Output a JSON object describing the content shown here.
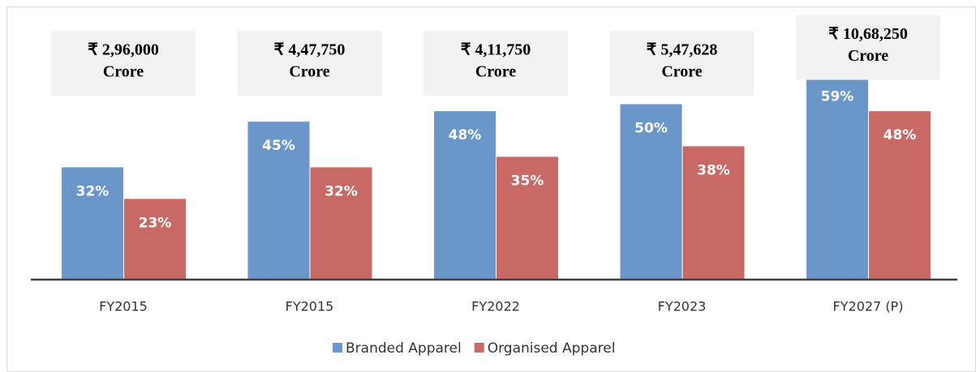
{
  "chart_data": {
    "type": "bar",
    "categories": [
      "FY2015",
      "FY2015",
      "FY2022",
      "FY2023",
      "FY2027 (P)"
    ],
    "series": [
      {
        "name": "Branded Apparel",
        "color": "#6a96c9",
        "values": [
          32,
          45,
          48,
          50,
          59
        ],
        "value_labels": [
          "32%",
          "45%",
          "48%",
          "50%",
          "59%"
        ]
      },
      {
        "name": "Organised Apparel",
        "color": "#c96966",
        "values": [
          23,
          32,
          35,
          38,
          48
        ],
        "value_labels": [
          "23%",
          "32%",
          "35%",
          "38%",
          "48%"
        ]
      }
    ],
    "annotations": [
      [
        "₹ 2,96,000",
        "Crore"
      ],
      [
        "₹ 4,47,750",
        "Crore"
      ],
      [
        "₹ 4,11,750",
        "Crore"
      ],
      [
        "₹ 5,47,628",
        "Crore"
      ],
      [
        "₹ 10,68,250",
        "Crore"
      ]
    ],
    "legend": "bottom"
  }
}
